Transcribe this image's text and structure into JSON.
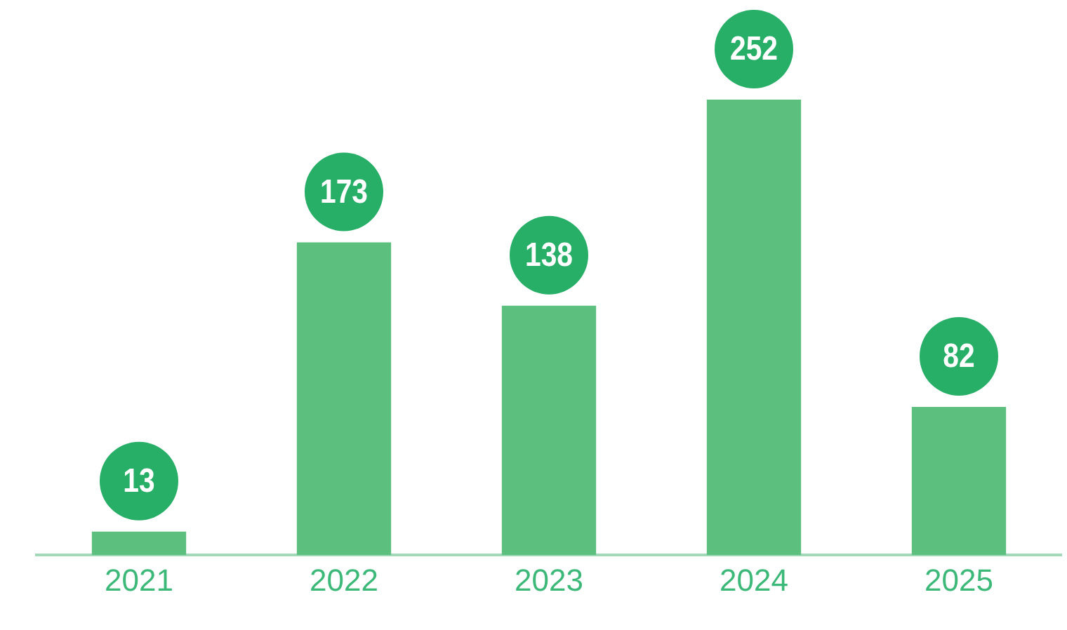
{
  "chart_data": {
    "type": "bar",
    "categories": [
      "2021",
      "2022",
      "2023",
      "2024",
      "2025"
    ],
    "values": [
      13,
      173,
      138,
      252,
      82
    ],
    "color": "#5dbf7e",
    "data_labels": true,
    "tick_labels": "x"
  }
}
